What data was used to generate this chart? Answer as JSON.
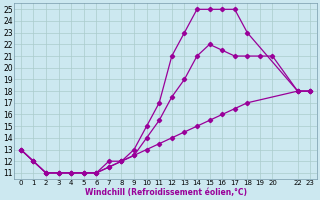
{
  "xlabel": "Windchill (Refroidissement éolien,°C)",
  "bg_color": "#cce8f0",
  "line_color": "#990099",
  "grid_color": "#aacccc",
  "xlim": [
    -0.5,
    23.5
  ],
  "ylim": [
    10.5,
    25.5
  ],
  "xticks": [
    0,
    1,
    2,
    3,
    4,
    5,
    6,
    7,
    8,
    9,
    10,
    11,
    12,
    13,
    14,
    15,
    16,
    17,
    18,
    19,
    20,
    22,
    23
  ],
  "yticks": [
    11,
    12,
    13,
    14,
    15,
    16,
    17,
    18,
    19,
    20,
    21,
    22,
    23,
    24,
    25
  ],
  "curve_upper_x": [
    0,
    1,
    2,
    3,
    4,
    5,
    6,
    7,
    8,
    9,
    10,
    11,
    12,
    13,
    14,
    15,
    16,
    17,
    18,
    22,
    23
  ],
  "curve_upper_y": [
    13,
    12,
    11,
    11,
    11,
    11,
    11,
    12,
    12,
    13,
    15,
    17,
    21,
    23,
    25,
    25,
    25,
    25,
    23,
    18,
    18
  ],
  "curve_mid_x": [
    0,
    1,
    2,
    3,
    4,
    5,
    6,
    7,
    8,
    9,
    10,
    11,
    12,
    13,
    14,
    15,
    16,
    17,
    18,
    19,
    20,
    22,
    23
  ],
  "curve_mid_y": [
    13,
    12,
    11,
    11,
    11,
    11,
    11,
    11.5,
    12,
    12.5,
    14,
    15.5,
    17.5,
    19,
    21,
    22,
    21.5,
    21,
    21,
    21,
    21,
    18,
    18
  ],
  "curve_low_x": [
    0,
    1,
    2,
    3,
    4,
    5,
    6,
    7,
    8,
    9,
    10,
    11,
    12,
    13,
    14,
    15,
    16,
    17,
    18,
    22,
    23
  ],
  "curve_low_y": [
    13,
    12,
    11,
    11,
    11,
    11,
    11,
    11.5,
    12,
    12.5,
    13,
    13.5,
    14,
    14.5,
    15,
    15.5,
    16,
    16.5,
    17,
    18,
    18
  ]
}
